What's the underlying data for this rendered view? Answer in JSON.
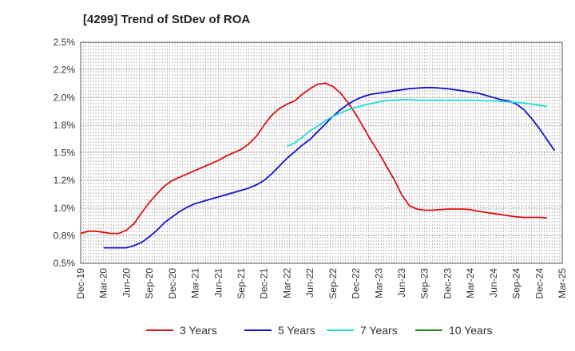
{
  "chart_data": {
    "type": "line",
    "title": "[4299]  Trend of StDev of ROA",
    "xlabel": "",
    "ylabel": "",
    "x_tick_labels": [
      "Dec-19",
      "Mar-20",
      "Jun-20",
      "Sep-20",
      "Dec-20",
      "Mar-21",
      "Jun-21",
      "Sep-21",
      "Dec-21",
      "Mar-22",
      "Jun-22",
      "Sep-22",
      "Dec-22",
      "Mar-23",
      "Jun-23",
      "Sep-23",
      "Dec-23",
      "Mar-24",
      "Jun-24",
      "Sep-24",
      "Dec-24",
      "Mar-25"
    ],
    "y_ticks": [
      0.5,
      0.75,
      1.0,
      1.25,
      1.5,
      1.75,
      2.0,
      2.25,
      2.5
    ],
    "y_tick_labels": [
      "0.5%",
      "0.8%",
      "1.0%",
      "1.2%",
      "1.5%",
      "1.8%",
      "2.0%",
      "2.2%",
      "2.5%"
    ],
    "ylim": [
      0.5,
      2.5
    ],
    "grid": true,
    "legend_position": "bottom",
    "series": [
      {
        "name": "3 Years",
        "color": "#e01010",
        "start_index": 0,
        "values": [
          0.77,
          0.79,
          0.79,
          0.78,
          0.77,
          0.77,
          0.8,
          0.86,
          0.96,
          1.05,
          1.13,
          1.2,
          1.25,
          1.28,
          1.31,
          1.34,
          1.37,
          1.4,
          1.43,
          1.47,
          1.5,
          1.53,
          1.58,
          1.65,
          1.75,
          1.84,
          1.9,
          1.94,
          1.97,
          2.03,
          2.08,
          2.12,
          2.13,
          2.1,
          2.04,
          1.95,
          1.85,
          1.73,
          1.61,
          1.5,
          1.38,
          1.26,
          1.12,
          1.02,
          0.99,
          0.98,
          0.98,
          0.985,
          0.99,
          0.99,
          0.99,
          0.985,
          0.97,
          0.96,
          0.95,
          0.94,
          0.93,
          0.92,
          0.915,
          0.915,
          0.915,
          0.91
        ]
      },
      {
        "name": "5 Years",
        "color": "#1414c8",
        "start_index": 3,
        "values": [
          0.64,
          0.64,
          0.64,
          0.64,
          0.66,
          0.69,
          0.74,
          0.8,
          0.87,
          0.92,
          0.97,
          1.01,
          1.04,
          1.06,
          1.08,
          1.1,
          1.12,
          1.14,
          1.16,
          1.18,
          1.21,
          1.25,
          1.31,
          1.38,
          1.45,
          1.51,
          1.57,
          1.62,
          1.69,
          1.76,
          1.83,
          1.89,
          1.94,
          1.98,
          2.01,
          2.03,
          2.04,
          2.05,
          2.06,
          2.07,
          2.08,
          2.085,
          2.09,
          2.09,
          2.085,
          2.08,
          2.07,
          2.06,
          2.05,
          2.04,
          2.02,
          2.0,
          1.98,
          1.97,
          1.94,
          1.89,
          1.81,
          1.72,
          1.62,
          1.52
        ]
      },
      {
        "name": "7 Years",
        "color": "#22dcdc",
        "start_index": 27,
        "values": [
          1.56,
          1.59,
          1.64,
          1.7,
          1.74,
          1.79,
          1.83,
          1.86,
          1.89,
          1.91,
          1.93,
          1.945,
          1.96,
          1.97,
          1.975,
          1.98,
          1.98,
          1.975,
          1.975,
          1.975,
          1.975,
          1.975,
          1.975,
          1.975,
          1.975,
          1.975,
          1.97,
          1.97,
          1.965,
          1.96,
          1.955,
          1.95,
          1.94,
          1.93,
          1.92
        ]
      },
      {
        "name": "10 Years",
        "color": "#1a8a1a",
        "start_index": 0,
        "values": []
      }
    ]
  }
}
